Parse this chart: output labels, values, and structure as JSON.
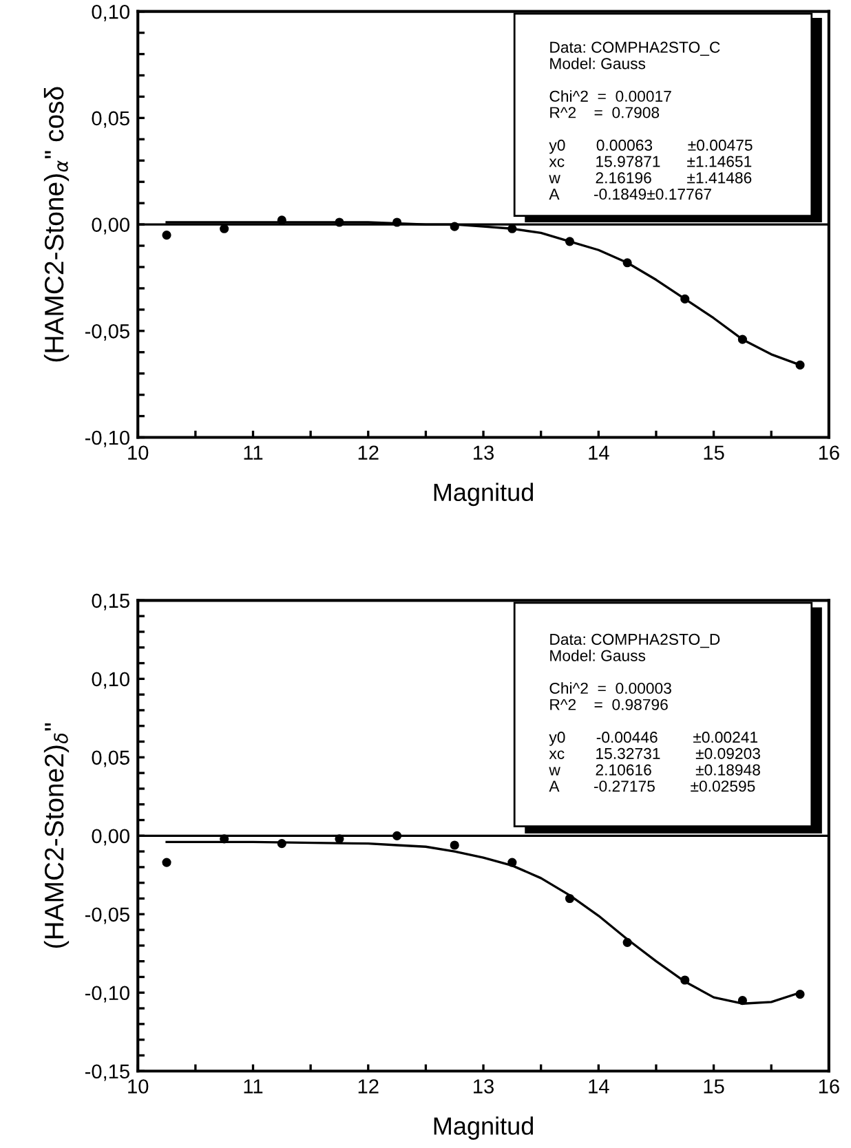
{
  "chart_data": [
    {
      "type": "scatter",
      "xlabel": "Magnitud",
      "ylabel": "(HAMC2-Stone)$_{α}$\" cosδ",
      "marker": "circle",
      "grid": false,
      "xlim": [
        10,
        16
      ],
      "ylim": [
        -0.1,
        0.1
      ],
      "xticks": [
        10,
        {
          "value": 10.5,
          "label": null
        },
        11,
        {
          "value": 11.5,
          "label": null
        },
        12,
        {
          "value": 12.5,
          "label": null
        },
        13,
        {
          "value": 13.5,
          "label": null
        },
        14,
        {
          "value": 14.5,
          "label": null
        },
        15,
        {
          "value": 15.5,
          "label": null
        },
        16
      ],
      "yticks": [
        {
          "value": -0.1,
          "label": "-0,10"
        },
        {
          "value": -0.09,
          "label": null
        },
        {
          "value": -0.08,
          "label": null
        },
        {
          "value": -0.07,
          "label": null
        },
        {
          "value": -0.06,
          "label": null
        },
        {
          "value": -0.05,
          "label": "-0,05"
        },
        {
          "value": -0.04,
          "label": null
        },
        {
          "value": -0.03,
          "label": null
        },
        {
          "value": -0.02,
          "label": null
        },
        {
          "value": -0.01,
          "label": null
        },
        {
          "value": 0,
          "label": "0,00"
        },
        {
          "value": 0.01,
          "label": null
        },
        {
          "value": 0.02,
          "label": null
        },
        {
          "value": 0.03,
          "label": null
        },
        {
          "value": 0.04,
          "label": null
        },
        {
          "value": 0.05,
          "label": "0,05"
        },
        {
          "value": 0.06,
          "label": null
        },
        {
          "value": 0.07,
          "label": null
        },
        {
          "value": 0.08,
          "label": null
        },
        {
          "value": 0.09,
          "label": null
        },
        {
          "value": 0.1,
          "label": "0,10"
        }
      ],
      "ref_lines": [
        {
          "axis": "y",
          "value": 0,
          "color": "#000000",
          "line_style": "solid"
        }
      ],
      "annotations": [
        "Data: COMPHA2STO_C\nModel: Gauss\n\nChi^2  =  0.00017\nR^2    =  0.7908\n\ny0       0.00063        ±0.00475\nxc       15.97871      ±1.14651\nw        2.16196        ±1.41486\nA        -0.1849±0.17767"
      ],
      "series": [
        {
          "type": "scatter",
          "color": "#000000",
          "x": [
            10.25,
            10.75,
            11.25,
            11.75,
            12.25,
            12.75,
            13.25,
            13.75,
            14.25,
            14.75,
            15.25,
            15.75
          ],
          "values": [
            -0.005,
            -0.002,
            0.002,
            0.001,
            0.001,
            -0.001,
            -0.002,
            -0.008,
            -0.018,
            -0.035,
            -0.054,
            -0.066
          ]
        },
        {
          "type": "line",
          "color": "#000000",
          "marker": "none",
          "x": [
            10.25,
            11,
            12,
            12.5,
            12.75,
            13,
            13.25,
            13.5,
            13.75,
            14,
            14.25,
            14.5,
            14.75,
            15,
            15.25,
            15.5,
            15.75
          ],
          "values": [
            0.001,
            0.001,
            0.001,
            0.0,
            0.0,
            -0.001,
            -0.002,
            -0.004,
            -0.008,
            -0.012,
            -0.018,
            -0.026,
            -0.035,
            -0.044,
            -0.054,
            -0.061,
            -0.066
          ]
        }
      ]
    },
    {
      "type": "scatter",
      "xlabel": "Magnitud",
      "ylabel": "(HAMC2-Stone2)$_{δ}$\"",
      "marker": "circle",
      "grid": false,
      "xlim": [
        10,
        16
      ],
      "ylim": [
        -0.15,
        0.15
      ],
      "xticks": [
        10,
        {
          "value": 10.5,
          "label": null
        },
        11,
        {
          "value": 11.5,
          "label": null
        },
        12,
        {
          "value": 12.5,
          "label": null
        },
        13,
        {
          "value": 13.5,
          "label": null
        },
        14,
        {
          "value": 14.5,
          "label": null
        },
        15,
        {
          "value": 15.5,
          "label": null
        },
        16
      ],
      "yticks": [
        {
          "value": -0.15,
          "label": "-0,15"
        },
        {
          "value": -0.14,
          "label": null
        },
        {
          "value": -0.13,
          "label": null
        },
        {
          "value": -0.12,
          "label": null
        },
        {
          "value": -0.11,
          "label": null
        },
        {
          "value": -0.1,
          "label": "-0,10"
        },
        {
          "value": -0.09,
          "label": null
        },
        {
          "value": -0.08,
          "label": null
        },
        {
          "value": -0.07,
          "label": null
        },
        {
          "value": -0.06,
          "label": null
        },
        {
          "value": -0.05,
          "label": "-0,05"
        },
        {
          "value": -0.04,
          "label": null
        },
        {
          "value": -0.03,
          "label": null
        },
        {
          "value": -0.02,
          "label": null
        },
        {
          "value": -0.01,
          "label": null
        },
        {
          "value": 0,
          "label": "0,00"
        },
        {
          "value": 0.01,
          "label": null
        },
        {
          "value": 0.02,
          "label": null
        },
        {
          "value": 0.03,
          "label": null
        },
        {
          "value": 0.04,
          "label": null
        },
        {
          "value": 0.05,
          "label": "0,05"
        },
        {
          "value": 0.06,
          "label": null
        },
        {
          "value": 0.07,
          "label": null
        },
        {
          "value": 0.08,
          "label": null
        },
        {
          "value": 0.09,
          "label": null
        },
        {
          "value": 0.1,
          "label": "0,10"
        },
        {
          "value": 0.11,
          "label": null
        },
        {
          "value": 0.12,
          "label": null
        },
        {
          "value": 0.13,
          "label": null
        },
        {
          "value": 0.14,
          "label": null
        },
        {
          "value": 0.15,
          "label": "0,15"
        }
      ],
      "ref_lines": [
        {
          "axis": "y",
          "value": 0,
          "color": "#000000",
          "line_style": "solid"
        }
      ],
      "annotations": [
        "Data: COMPHA2STO_D\nModel: Gauss\n\nChi^2  =  0.00003\nR^2    =  0.98796\n\ny0       -0.00446        ±0.00241\nxc       15.32731        ±0.09203\nw        2.10616          ±0.18948\nA        -0.27175        ±0.02595"
      ],
      "series": [
        {
          "type": "scatter",
          "color": "#000000",
          "x": [
            10.25,
            10.75,
            11.25,
            11.75,
            12.25,
            12.75,
            13.25,
            13.75,
            14.25,
            14.75,
            15.25,
            15.75
          ],
          "values": [
            -0.017,
            -0.002,
            -0.005,
            -0.002,
            0.0,
            -0.006,
            -0.017,
            -0.04,
            -0.068,
            -0.092,
            -0.105,
            -0.101
          ]
        },
        {
          "type": "line",
          "color": "#000000",
          "marker": "none",
          "x": [
            10.25,
            11,
            12,
            12.25,
            12.5,
            12.75,
            13,
            13.25,
            13.5,
            13.75,
            14,
            14.25,
            14.5,
            14.75,
            15,
            15.25,
            15.5,
            15.75
          ],
          "values": [
            -0.004,
            -0.004,
            -0.005,
            -0.006,
            -0.007,
            -0.01,
            -0.014,
            -0.019,
            -0.027,
            -0.038,
            -0.051,
            -0.066,
            -0.08,
            -0.093,
            -0.103,
            -0.107,
            -0.106,
            -0.1
          ]
        }
      ]
    }
  ]
}
